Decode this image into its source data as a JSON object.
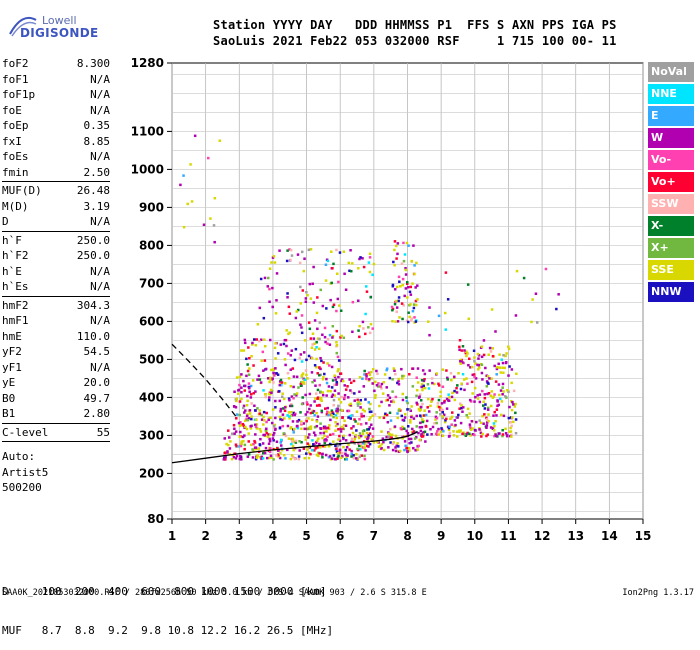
{
  "logo": {
    "line1": "Lowell",
    "line2": "DIGISONDE"
  },
  "header": {
    "row1": "Station YYYY DAY   DDD HHMMSS P1  FFS S AXN PPS IGA PS",
    "row2": "SaoLuis 2021 Feb22 053 032000 RSF     1 715 100 00- 11"
  },
  "params_group1": [
    {
      "name": "foF2",
      "value": "8.300"
    },
    {
      "name": "foF1",
      "value": "N/A"
    },
    {
      "name": "foF1p",
      "value": "N/A"
    },
    {
      "name": "foE",
      "value": "N/A"
    },
    {
      "name": "foEp",
      "value": "0.35"
    },
    {
      "name": "fxI",
      "value": "8.85"
    },
    {
      "name": "foEs",
      "value": "N/A"
    },
    {
      "name": "fmin",
      "value": "2.50"
    }
  ],
  "params_group2": [
    {
      "name": "MUF(D)",
      "value": "26.48"
    },
    {
      "name": "M(D)",
      "value": "3.19"
    },
    {
      "name": "D",
      "value": "N/A"
    }
  ],
  "params_group3": [
    {
      "name": "h`F",
      "value": "250.0"
    },
    {
      "name": "h`F2",
      "value": "250.0"
    },
    {
      "name": "h`E",
      "value": "N/A"
    },
    {
      "name": "h`Es",
      "value": "N/A"
    }
  ],
  "params_group4": [
    {
      "name": "hmF2",
      "value": "304.3"
    },
    {
      "name": "hmF1",
      "value": "N/A"
    },
    {
      "name": "hmE",
      "value": "110.0"
    },
    {
      "name": "yF2",
      "value": "54.5"
    },
    {
      "name": "yF1",
      "value": "N/A"
    },
    {
      "name": "yE",
      "value": "20.0"
    },
    {
      "name": "B0",
      "value": "49.7"
    },
    {
      "name": "B1",
      "value": "2.80"
    }
  ],
  "params_group5": [
    {
      "name": "C-level",
      "value": "55"
    }
  ],
  "auto_lines": [
    "Auto:",
    "Artist5",
    "500200"
  ],
  "legend": [
    {
      "label": "NoVal",
      "color": "#a0a0a0"
    },
    {
      "label": "NNE",
      "color": "#00e5ff"
    },
    {
      "label": "E",
      "color": "#33aaff"
    },
    {
      "label": "W",
      "color": "#b000b0"
    },
    {
      "label": "Vo-",
      "color": "#ff40b0"
    },
    {
      "label": "Vo+",
      "color": "#ff0033"
    },
    {
      "label": "SSW",
      "color": "#ffb0b0"
    },
    {
      "label": "X-",
      "color": "#00802a"
    },
    {
      "label": "X+",
      "color": "#70b840"
    },
    {
      "label": "SSE",
      "color": "#d8d800"
    },
    {
      "label": "NNW",
      "color": "#1a10c0"
    }
  ],
  "bottom_table": {
    "row_d": "D     100  200  400  600  800 1000 1500 3000 [km]",
    "row_muf": "MUF   8.7  8.8  9.2  9.8 10.8 12.2 16.2 26.5 [MHz]"
  },
  "footer": "SAA0K_2021053032000.RSF / 280fx256h 50 kHz 5.0 km / DPS-4 SAA0K 903 / 2.6 S 315.8 E",
  "footer_right": "Ion2Png 1.3.17",
  "chart_data": {
    "type": "scatter",
    "title": "",
    "xlabel": "",
    "ylabel": "",
    "xlim": [
      1,
      15
    ],
    "ylim": [
      80,
      1280
    ],
    "xticks": [
      "1",
      "2",
      "3",
      "4",
      "5",
      "6",
      "7",
      "8",
      "9",
      "10",
      "11",
      "12",
      "13",
      "14",
      "15"
    ],
    "yticks": [
      {
        "v": 80,
        "label": "80"
      },
      {
        "v": 200,
        "label": "200"
      },
      {
        "v": 300,
        "label": "300"
      },
      {
        "v": 400,
        "label": "400"
      },
      {
        "v": 500,
        "label": "500"
      },
      {
        "v": 600,
        "label": "600"
      },
      {
        "v": 700,
        "label": "700"
      },
      {
        "v": 800,
        "label": "800"
      },
      {
        "v": 900,
        "label": "900"
      },
      {
        "v": 1000,
        "label": "1000"
      },
      {
        "v": 1100,
        "label": "1100"
      },
      {
        "v": 1280,
        "label": "1280"
      }
    ],
    "grid": true,
    "series": [
      {
        "type": "line",
        "dash": false,
        "color": "#000",
        "x": [
          1.0,
          2.0,
          3.0,
          4.0,
          5.0,
          6.0,
          7.0,
          7.5,
          7.8,
          8.0,
          8.2,
          8.3
        ],
        "y": [
          228,
          240,
          252,
          262,
          270,
          278,
          285,
          290,
          294,
          298,
          305,
          310
        ]
      },
      {
        "type": "line",
        "dash": true,
        "color": "#000",
        "x": [
          1.0,
          1.5,
          2.0,
          2.5,
          2.9
        ],
        "y": [
          540,
          495,
          448,
          395,
          350
        ]
      }
    ],
    "scatter_clusters": [
      {
        "x": [
          2.5,
          6.8
        ],
        "y": [
          240,
          320
        ],
        "n": 320
      },
      {
        "x": [
          2.8,
          6.5
        ],
        "y": [
          320,
          460
        ],
        "n": 380
      },
      {
        "x": [
          3.0,
          6.0
        ],
        "y": [
          460,
          560
        ],
        "n": 120
      },
      {
        "x": [
          3.5,
          7.0
        ],
        "y": [
          560,
          800
        ],
        "n": 140
      },
      {
        "x": [
          6.5,
          8.5
        ],
        "y": [
          260,
          480
        ],
        "n": 260
      },
      {
        "x": [
          8.3,
          11.2
        ],
        "y": [
          300,
          480
        ],
        "n": 320
      },
      {
        "x": [
          9.5,
          11.0
        ],
        "y": [
          480,
          540
        ],
        "n": 60
      },
      {
        "x": [
          7.5,
          8.3
        ],
        "y": [
          600,
          820
        ],
        "n": 80
      },
      {
        "x": [
          1.2,
          2.4
        ],
        "y": [
          800,
          1120
        ],
        "n": 14
      },
      {
        "x": [
          8.5,
          12.5
        ],
        "y": [
          550,
          760
        ],
        "n": 24
      }
    ]
  }
}
